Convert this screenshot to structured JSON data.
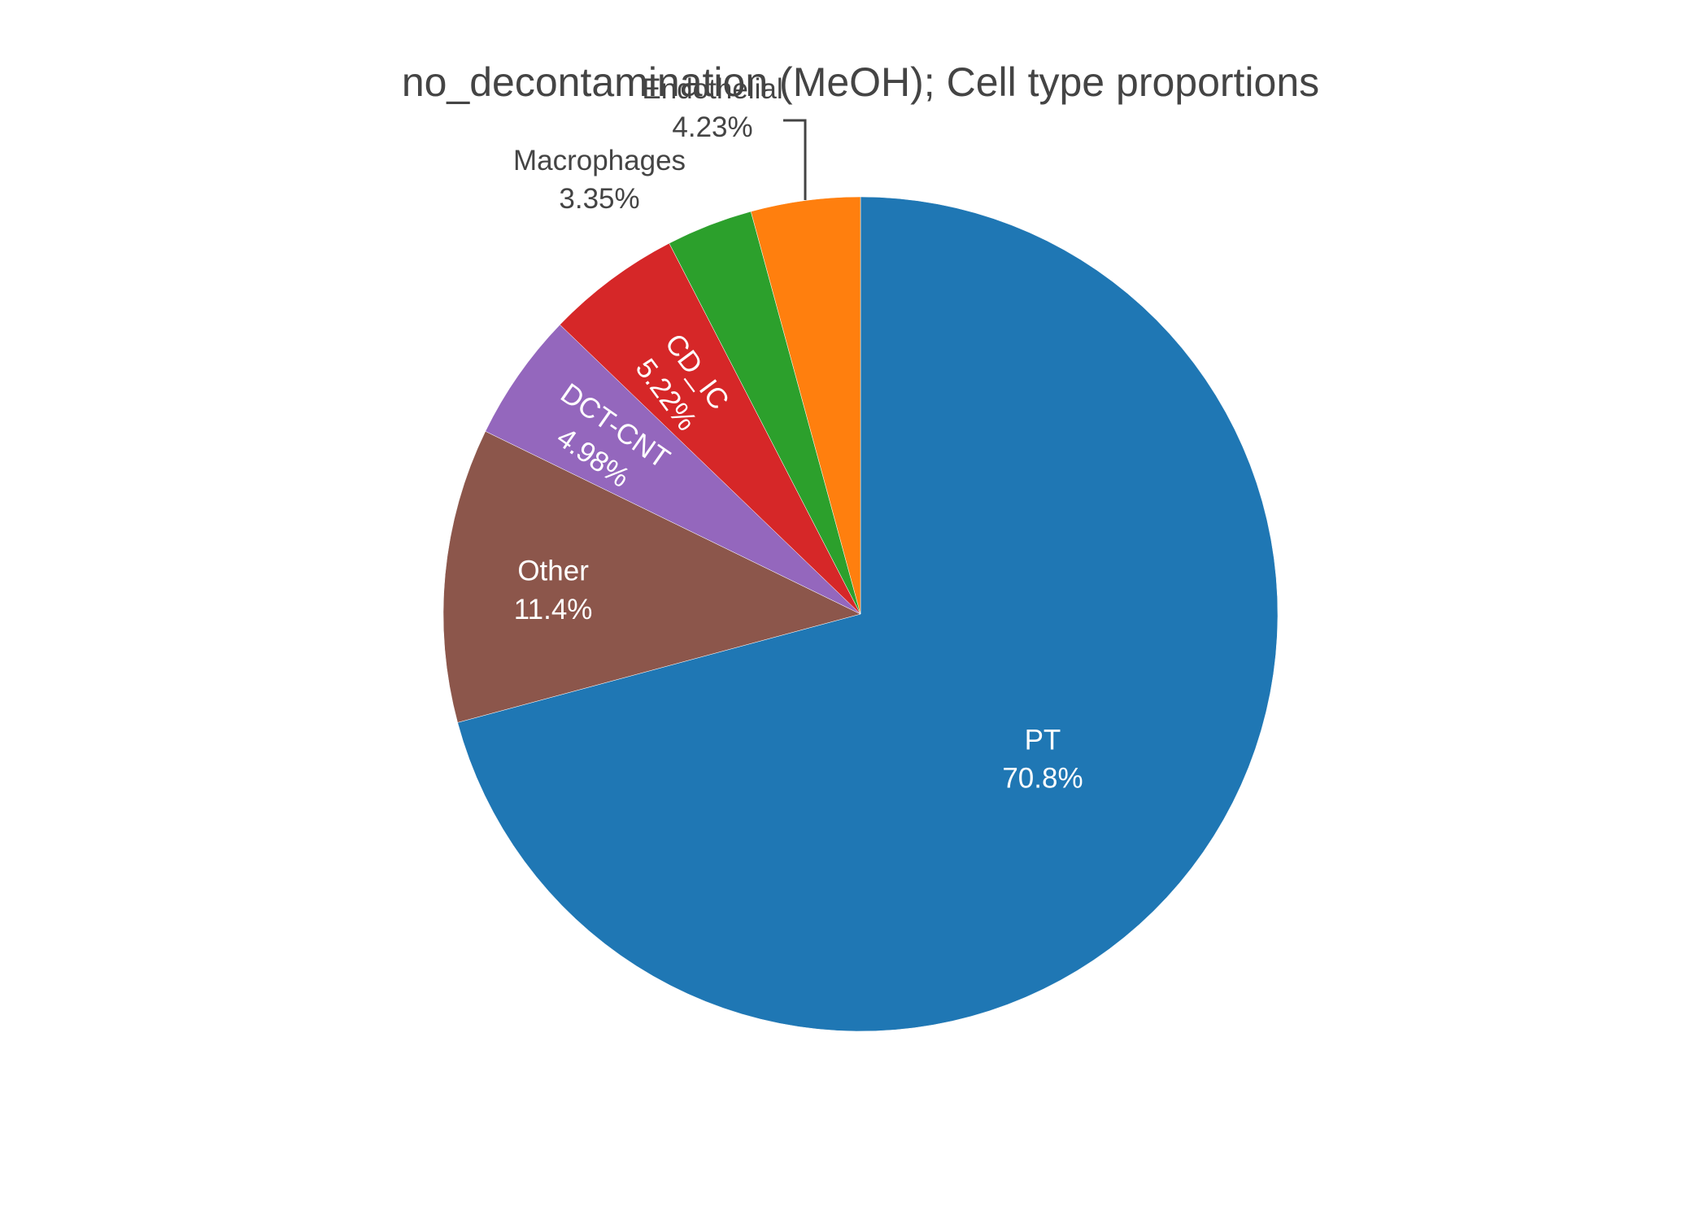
{
  "chart_data": {
    "type": "pie",
    "title": "no_decontamination (MeOH); Cell type proportions",
    "direction": "clockwise",
    "start": "12 o'clock",
    "slices": [
      {
        "label": "PT",
        "value": 70.8,
        "display": "70.8%",
        "color": "#1f77b4",
        "label_color": "#ffffff"
      },
      {
        "label": "Other",
        "value": 11.4,
        "display": "11.4%",
        "color": "#8c564b",
        "label_color": "#ffffff"
      },
      {
        "label": "DCT-CNT",
        "value": 4.98,
        "display": "4.98%",
        "color": "#9467bd",
        "label_color": "#ffffff"
      },
      {
        "label": "CD_IC",
        "value": 5.22,
        "display": "5.22%",
        "color": "#d62728",
        "label_color": "#ffffff"
      },
      {
        "label": "Macrophages",
        "value": 3.35,
        "display": "3.35%",
        "color": "#2ca02c",
        "label_color": "#444444"
      },
      {
        "label": "Endothelial",
        "value": 4.23,
        "display": "4.23%",
        "color": "#ff7f0e",
        "label_color": "#444444"
      }
    ]
  }
}
